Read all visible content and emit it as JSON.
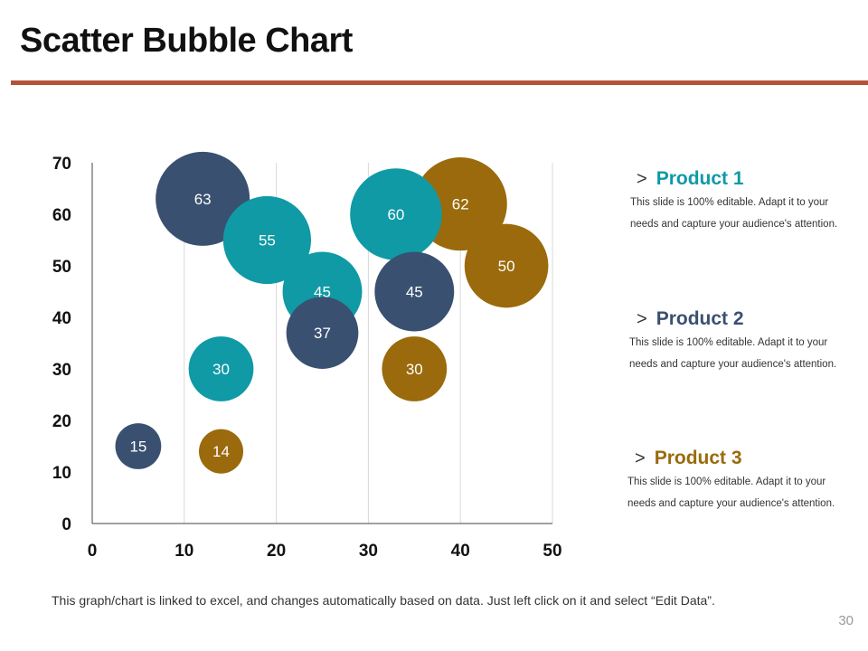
{
  "title": "Scatter Bubble Chart",
  "chart_data": {
    "type": "scatter",
    "subtype": "bubble",
    "title": "",
    "xlabel": "",
    "ylabel": "",
    "xlim": [
      0,
      50
    ],
    "ylim": [
      0,
      70
    ],
    "xticks": [
      0,
      10,
      20,
      30,
      40,
      50
    ],
    "yticks": [
      0,
      10,
      20,
      30,
      40,
      50,
      60,
      70
    ],
    "grid": "vertical",
    "series": [
      {
        "name": "Product 1",
        "color": "#0f9aa5",
        "points": [
          {
            "x": 14,
            "y": 30,
            "size": 30
          },
          {
            "x": 19,
            "y": 55,
            "size": 55
          },
          {
            "x": 25,
            "y": 45,
            "size": 45
          },
          {
            "x": 33,
            "y": 60,
            "size": 60
          }
        ]
      },
      {
        "name": "Product 2",
        "color": "#3a5070",
        "points": [
          {
            "x": 5,
            "y": 15,
            "size": 15
          },
          {
            "x": 12,
            "y": 63,
            "size": 63
          },
          {
            "x": 25,
            "y": 37,
            "size": 37
          },
          {
            "x": 35,
            "y": 45,
            "size": 45
          }
        ]
      },
      {
        "name": "Product 3",
        "color": "#9a6a0c",
        "points": [
          {
            "x": 14,
            "y": 14,
            "size": 14
          },
          {
            "x": 35,
            "y": 30,
            "size": 30
          },
          {
            "x": 40,
            "y": 62,
            "size": 62
          },
          {
            "x": 45,
            "y": 50,
            "size": 50
          }
        ]
      }
    ]
  },
  "legend": [
    {
      "name": "Product 1",
      "color": "#0f9aa5",
      "chevron": ">",
      "desc": "This slide is 100% editable. Adapt it to your needs and capture your audience's attention."
    },
    {
      "name": "Product 2",
      "color": "#3a5070",
      "chevron": ">",
      "desc": "This slide is 100% editable. Adapt it to your needs and capture your audience's attention."
    },
    {
      "name": "Product 3",
      "color": "#9a6a0c",
      "chevron": ">",
      "desc": "This slide is 100% editable. Adapt it to your needs and capture your audience's attention."
    }
  ],
  "footnote": "This graph/chart is linked to excel, and changes automatically  based on data. Just left click on it and select “Edit Data”.",
  "page_number": "30"
}
